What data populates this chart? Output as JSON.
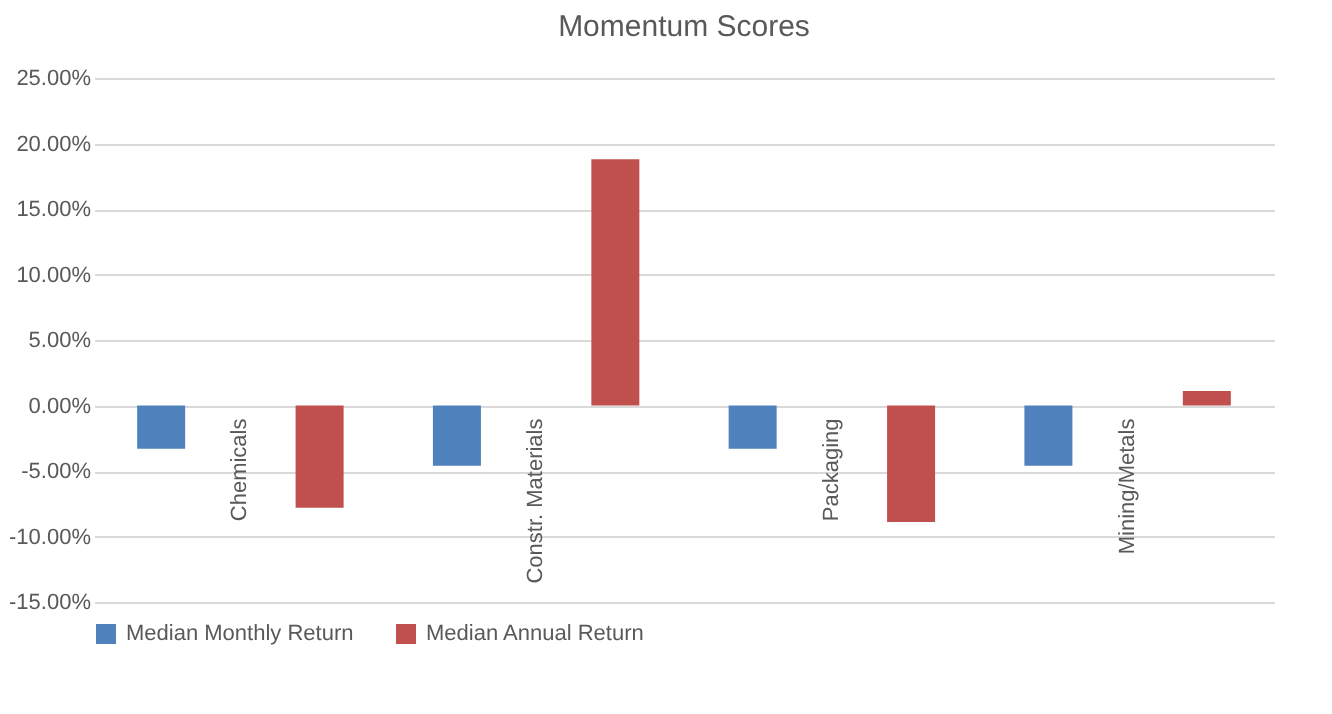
{
  "chart_data": {
    "type": "bar",
    "title": "Momentum Scores",
    "categories": [
      "Chemicals",
      "Constr. Materials",
      "Packaging",
      "Mining/Metals"
    ],
    "series": [
      {
        "name": "Median Monthly Return",
        "color": "#4f81bd",
        "values": [
          -3.3,
          -4.6,
          -3.3,
          -4.6
        ]
      },
      {
        "name": "Median Annual Return",
        "color": "#c0504d",
        "values": [
          -7.8,
          18.8,
          -8.9,
          1.1
        ]
      }
    ],
    "ylim": [
      -15,
      25
    ],
    "yticks": [
      {
        "value": -15,
        "label": "-15.00%"
      },
      {
        "value": -10,
        "label": "-10.00%"
      },
      {
        "value": -5,
        "label": "-5.00%"
      },
      {
        "value": 0,
        "label": "0.00%"
      },
      {
        "value": 5,
        "label": "5.00%"
      },
      {
        "value": 10,
        "label": "10.00%"
      },
      {
        "value": 15,
        "label": "15.00%"
      },
      {
        "value": 20,
        "label": "20.00%"
      },
      {
        "value": 25,
        "label": "25.00%"
      }
    ],
    "grid": "y",
    "legend": "bottom"
  }
}
